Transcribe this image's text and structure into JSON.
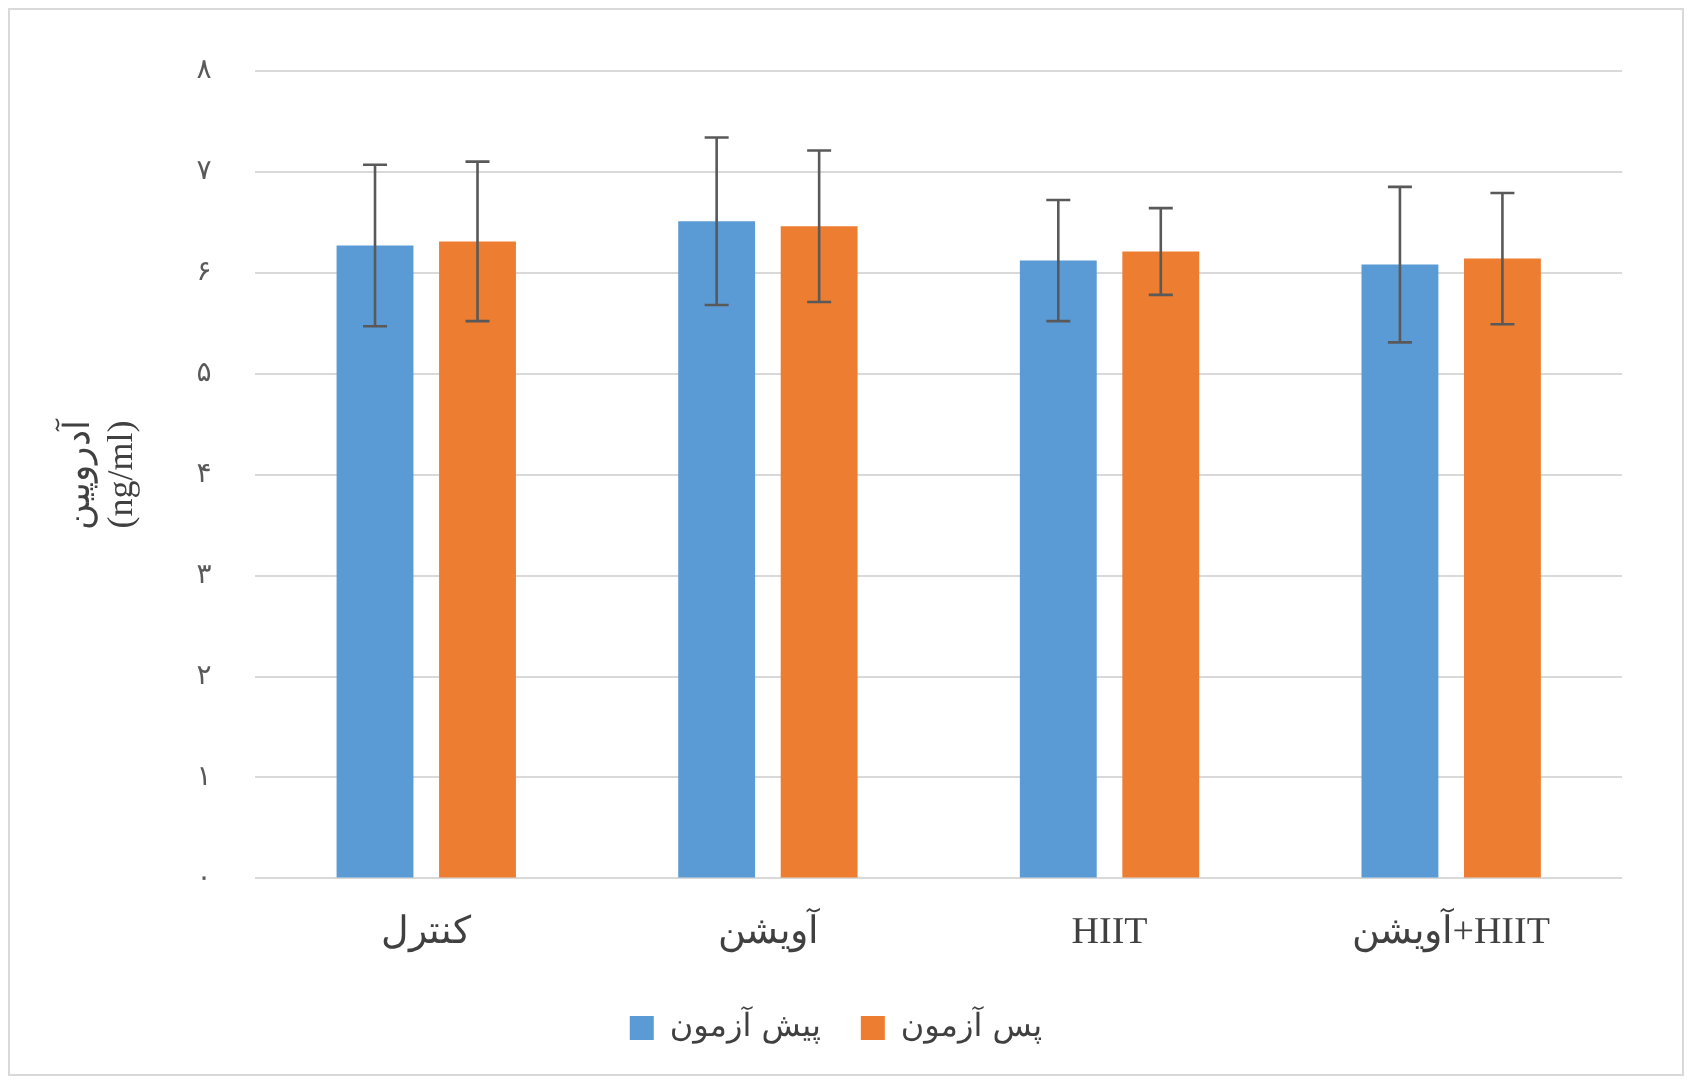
{
  "chart_data": {
    "type": "bar",
    "categories": [
      "کنترل",
      "آویشن",
      "HIIT",
      "آویشن+HIIT"
    ],
    "series": [
      {
        "name": "پیش آزمون",
        "color": "#5b9bd5",
        "values": [
          6.27,
          6.51,
          6.12,
          6.08
        ],
        "errors": [
          0.8,
          0.83,
          0.6,
          0.77
        ]
      },
      {
        "name": "پس آزمون",
        "color": "#ed7d31",
        "values": [
          6.31,
          6.46,
          6.21,
          6.14
        ],
        "errors": [
          0.79,
          0.75,
          0.43,
          0.65
        ]
      }
    ],
    "ylabel": "آدروپین\n(ng/ml)",
    "ylim": [
      0,
      8
    ],
    "yticks": [
      {
        "value": 0,
        "label": "۰"
      },
      {
        "value": 1,
        "label": "۱"
      },
      {
        "value": 2,
        "label": "۲"
      },
      {
        "value": 3,
        "label": "۳"
      },
      {
        "value": 4,
        "label": "۴"
      },
      {
        "value": 5,
        "label": "۵"
      },
      {
        "value": 6,
        "label": "۶"
      },
      {
        "value": 7,
        "label": "۷"
      },
      {
        "value": 8,
        "label": "۸"
      }
    ],
    "grid": "y",
    "legend": "bottom"
  }
}
